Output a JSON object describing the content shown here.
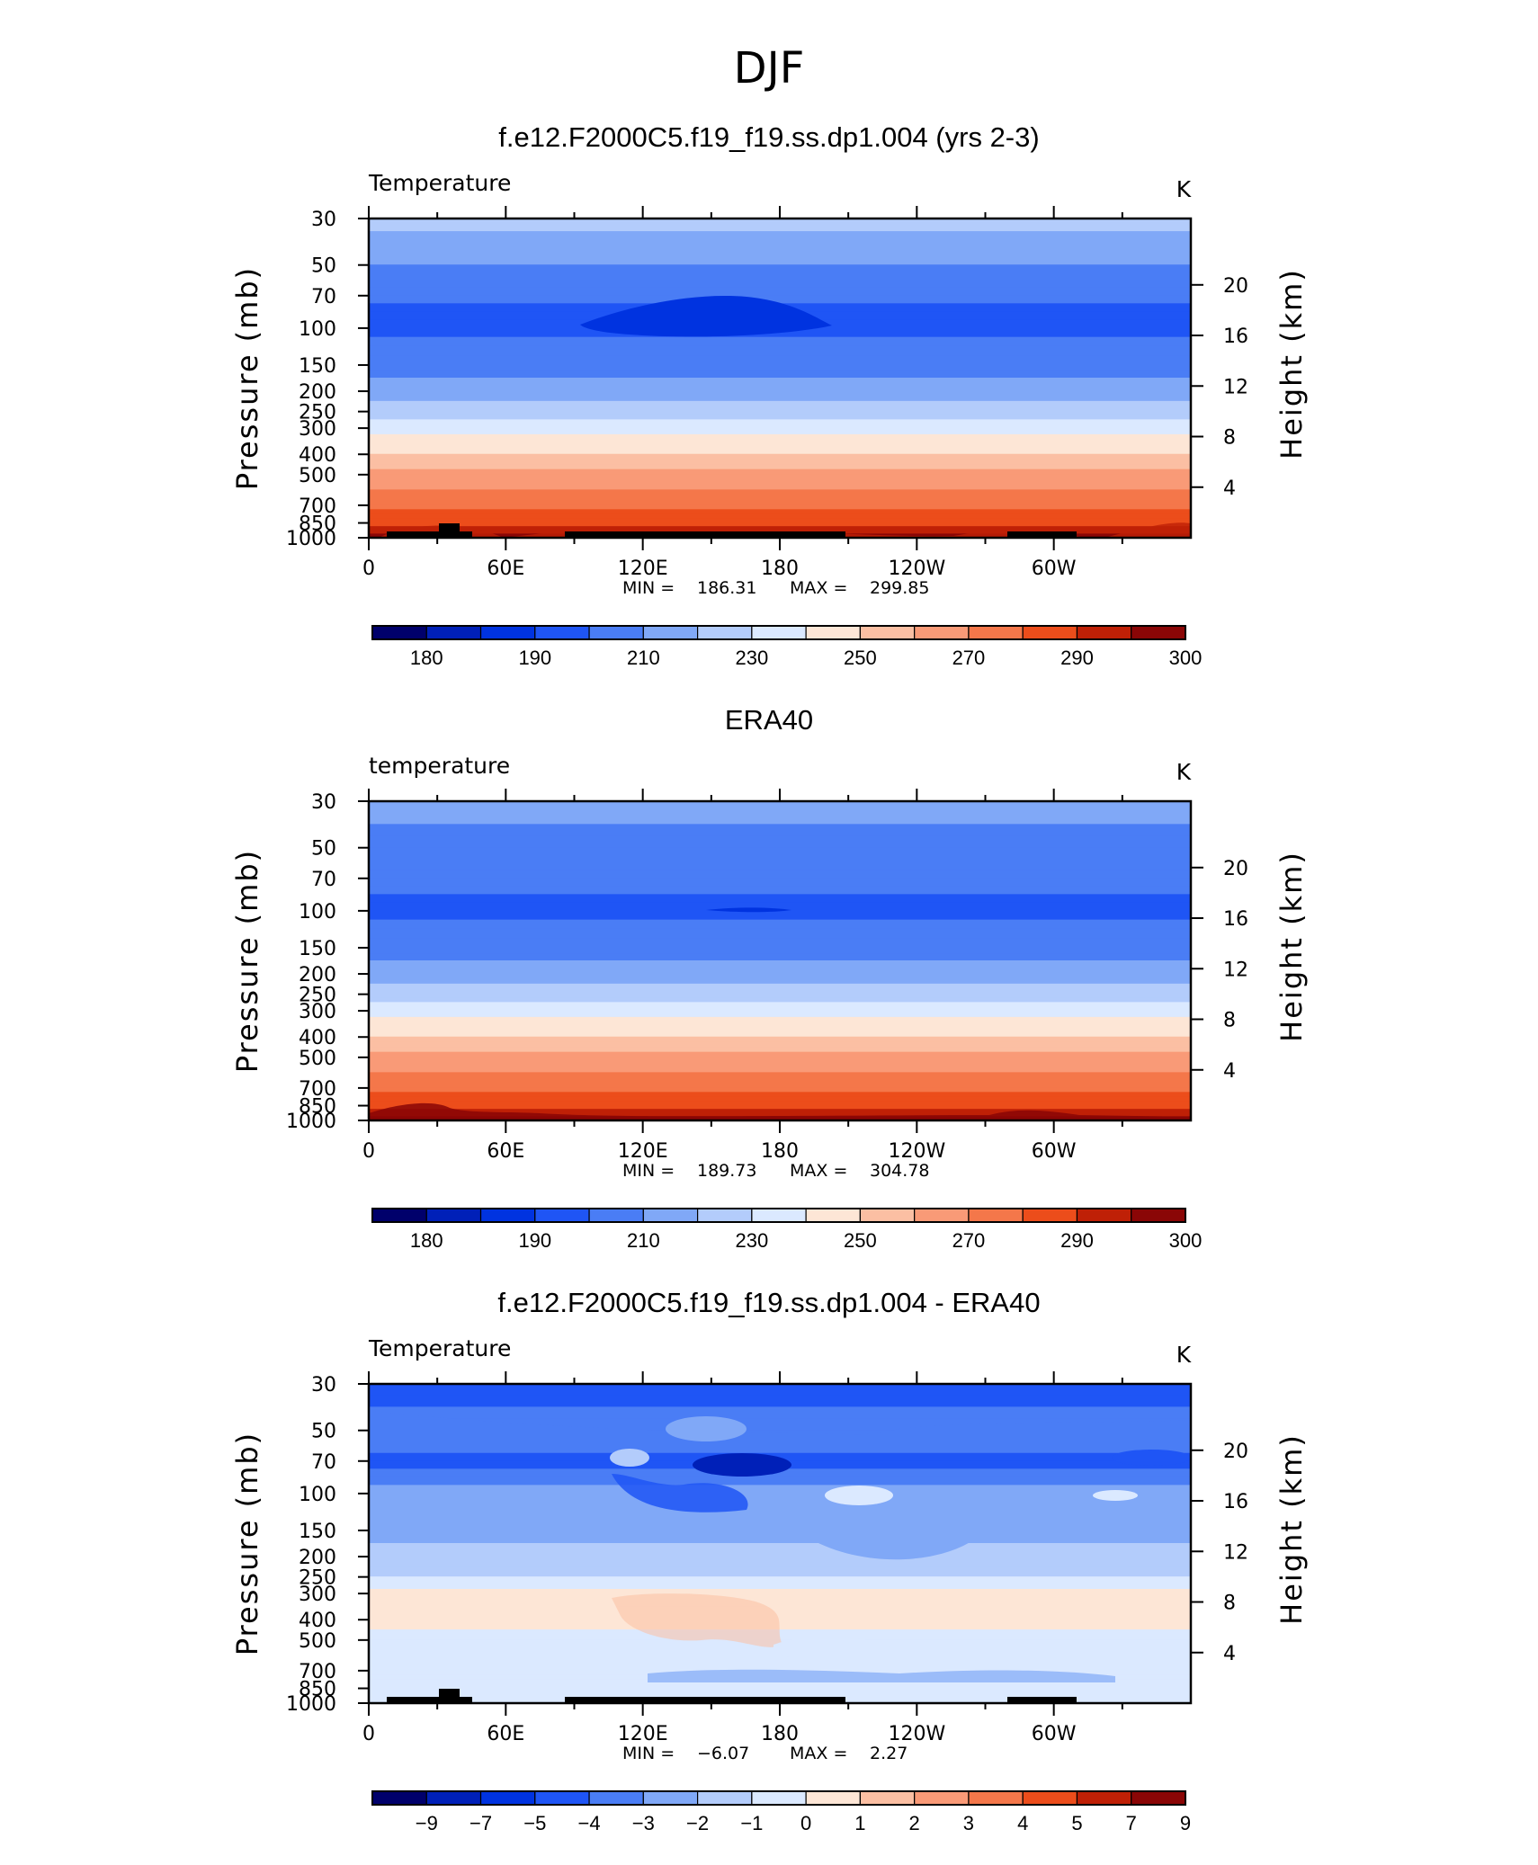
{
  "figure_title": "DJF",
  "chart_data": [
    {
      "type": "heatmap",
      "title": "f.e12.F2000C5.f19_f19.ss.dp1.004 (yrs 2-3)",
      "variable": "Temperature",
      "units": "K",
      "ylabel": "Pressure (mb)",
      "y2label": "Height (km)",
      "x_ticks": [
        "0",
        "60E",
        "120E",
        "180",
        "120W",
        "60W"
      ],
      "x_tick_lon": [
        0,
        60,
        120,
        180,
        240,
        300
      ],
      "xlim": [
        0,
        360
      ],
      "y_ticks": [
        "30",
        "50",
        "70",
        "100",
        "150",
        "200",
        "250",
        "300",
        "400",
        "500",
        "700",
        "850",
        "1000"
      ],
      "y_tick_values": [
        30,
        50,
        70,
        100,
        150,
        200,
        250,
        300,
        400,
        500,
        700,
        850,
        1000
      ],
      "ylim": [
        1000,
        30
      ],
      "y_scale": "log",
      "y2_ticks": [
        "4",
        "8",
        "12",
        "16",
        "20"
      ],
      "y2_tick_values": [
        4,
        8,
        12,
        16,
        20
      ],
      "min_label": "MIN =",
      "min_value": "186.31",
      "max_label": "MAX =",
      "max_value": "299.85",
      "colorbar_labels": [
        "180",
        "190",
        "210",
        "230",
        "250",
        "270",
        "290",
        "300"
      ],
      "levels": [
        {
          "p": 30,
          "value": 227
        },
        {
          "p": 40,
          "value": 214
        },
        {
          "p": 50,
          "value": 210
        },
        {
          "p": 70,
          "value": 201
        },
        {
          "p": 100,
          "value": 198
        },
        {
          "p": 150,
          "value": 205
        },
        {
          "p": 200,
          "value": 213
        },
        {
          "p": 250,
          "value": 225
        },
        {
          "p": 300,
          "value": 235
        },
        {
          "p": 400,
          "value": 250
        },
        {
          "p": 500,
          "value": 262
        },
        {
          "p": 700,
          "value": 277
        },
        {
          "p": 850,
          "value": 286
        },
        {
          "p": 1000,
          "value": 297
        }
      ],
      "topography": true
    },
    {
      "type": "heatmap",
      "title": "ERA40",
      "variable": "temperature",
      "units": "K",
      "ylabel": "Pressure (mb)",
      "y2label": "Height (km)",
      "x_ticks": [
        "0",
        "60E",
        "120E",
        "180",
        "120W",
        "60W"
      ],
      "x_tick_lon": [
        0,
        60,
        120,
        180,
        240,
        300
      ],
      "xlim": [
        0,
        360
      ],
      "y_ticks": [
        "30",
        "50",
        "70",
        "100",
        "150",
        "200",
        "250",
        "300",
        "400",
        "500",
        "700",
        "850",
        "1000"
      ],
      "y_tick_values": [
        30,
        50,
        70,
        100,
        150,
        200,
        250,
        300,
        400,
        500,
        700,
        850,
        1000
      ],
      "ylim": [
        1000,
        30
      ],
      "y_scale": "log",
      "y2_ticks": [
        "4",
        "8",
        "12",
        "16",
        "20"
      ],
      "y2_tick_values": [
        4,
        8,
        12,
        16,
        20
      ],
      "min_label": "MIN =",
      "min_value": "189.73",
      "max_label": "MAX =",
      "max_value": "304.78",
      "colorbar_labels": [
        "180",
        "190",
        "210",
        "230",
        "250",
        "270",
        "290",
        "300"
      ],
      "levels": [
        {
          "p": 30,
          "value": 213
        },
        {
          "p": 50,
          "value": 208
        },
        {
          "p": 70,
          "value": 201
        },
        {
          "p": 100,
          "value": 199
        },
        {
          "p": 150,
          "value": 205
        },
        {
          "p": 200,
          "value": 213
        },
        {
          "p": 250,
          "value": 225
        },
        {
          "p": 300,
          "value": 235
        },
        {
          "p": 400,
          "value": 250
        },
        {
          "p": 500,
          "value": 262
        },
        {
          "p": 700,
          "value": 277
        },
        {
          "p": 850,
          "value": 287
        },
        {
          "p": 1000,
          "value": 298
        }
      ],
      "topography": false
    },
    {
      "type": "heatmap",
      "title": "f.e12.F2000C5.f19_f19.ss.dp1.004 - ERA40",
      "variable": "Temperature",
      "units": "K",
      "ylabel": "Pressure (mb)",
      "y2label": "Height (km)",
      "x_ticks": [
        "0",
        "60E",
        "120E",
        "180",
        "120W",
        "60W"
      ],
      "x_tick_lon": [
        0,
        60,
        120,
        180,
        240,
        300
      ],
      "xlim": [
        0,
        360
      ],
      "y_ticks": [
        "30",
        "50",
        "70",
        "100",
        "150",
        "200",
        "250",
        "300",
        "400",
        "500",
        "700",
        "850",
        "1000"
      ],
      "y_tick_values": [
        30,
        50,
        70,
        100,
        150,
        200,
        250,
        300,
        400,
        500,
        700,
        850,
        1000
      ],
      "ylim": [
        1000,
        30
      ],
      "y_scale": "log",
      "y2_ticks": [
        "4",
        "8",
        "12",
        "16",
        "20"
      ],
      "y2_tick_values": [
        4,
        8,
        12,
        16,
        20
      ],
      "min_label": "MIN =",
      "min_value": "−6.07",
      "max_label": "MAX =",
      "max_value": "2.27",
      "colorbar_labels": [
        "−9",
        "−7",
        "−5",
        "−4",
        "−3",
        "−2",
        "−1",
        "0",
        "1",
        "2",
        "3",
        "4",
        "5",
        "7",
        "9"
      ],
      "levels": [
        {
          "p": 30,
          "value": -4.5
        },
        {
          "p": 50,
          "value": -3.5
        },
        {
          "p": 70,
          "value": -4.3
        },
        {
          "p": 100,
          "value": -2.5
        },
        {
          "p": 150,
          "value": -2.3
        },
        {
          "p": 200,
          "value": -1.6
        },
        {
          "p": 250,
          "value": -1.2
        },
        {
          "p": 300,
          "value": 0.4
        },
        {
          "p": 400,
          "value": 0.5
        },
        {
          "p": 500,
          "value": -0.5
        },
        {
          "p": 700,
          "value": -0.8
        },
        {
          "p": 850,
          "value": -0.3
        },
        {
          "p": 1000,
          "value": -0.5
        }
      ],
      "topography": true
    }
  ],
  "colorbar_colors": [
    "#00006b",
    "#0020b8",
    "#0033e0",
    "#1f55f5",
    "#4a7df5",
    "#80a8f7",
    "#b3ccfb",
    "#dbe9ff",
    "#fde6d6",
    "#fbbfa3",
    "#f99a77",
    "#f4774a",
    "#ec4d1b",
    "#bf2006",
    "#8a0606"
  ]
}
